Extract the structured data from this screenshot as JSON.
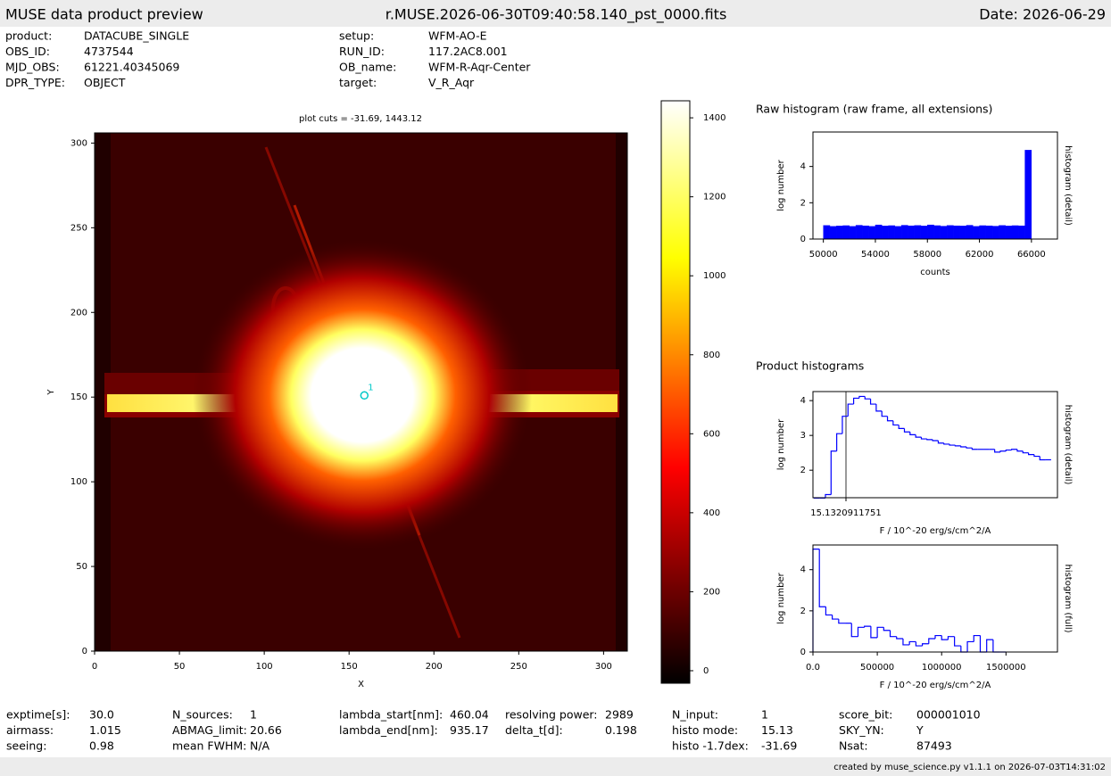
{
  "header": {
    "left": "MUSE data product preview",
    "center": "r.MUSE.2026-06-30T09:40:58.140_pst_0000.fits",
    "right": "Date: 2026-06-29"
  },
  "info_top": [
    [
      {
        "label": "product:",
        "value": "DATACUBE_SINGLE"
      },
      {
        "label": "OBS_ID:",
        "value": "4737544"
      },
      {
        "label": "MJD_OBS:",
        "value": "61221.40345069"
      },
      {
        "label": "DPR_TYPE:",
        "value": "OBJECT"
      }
    ],
    [
      {
        "label": "setup:",
        "value": "WFM-AO-E"
      },
      {
        "label": "RUN_ID:",
        "value": "117.2AC8.001"
      },
      {
        "label": "OB_name:",
        "value": "WFM-R-Aqr-Center"
      },
      {
        "label": "target:",
        "value": "V_R_Aqr"
      }
    ]
  ],
  "chart_data": [
    {
      "type": "image",
      "title": "plot cuts = -31.69, 1443.12",
      "xlabel": "X",
      "ylabel": "Y",
      "xlim": [
        0,
        314
      ],
      "ylim": [
        0,
        306
      ],
      "xticks": [
        0,
        50,
        100,
        150,
        200,
        250,
        300
      ],
      "yticks": [
        0,
        50,
        100,
        150,
        200,
        250,
        300
      ],
      "points": {
        "x": [
          159
        ],
        "y": [
          151
        ],
        "labels": [
          "1"
        ],
        "color": "#00c8c8"
      }
    },
    {
      "type": "colorbar",
      "ylim": [
        -31.69,
        1443.12
      ],
      "yticks": [
        0,
        200,
        400,
        600,
        800,
        1000,
        1200,
        1400
      ]
    },
    {
      "type": "histogram",
      "title": "Raw histogram (raw frame, all extensions)",
      "xlabel": "counts",
      "ylabel": "log number",
      "y2label": "histogram (detail)",
      "bins": [
        50000,
        50500,
        51000,
        51500,
        52000,
        52500,
        53000,
        53500,
        54000,
        54500,
        55000,
        55500,
        56000,
        56500,
        57000,
        57500,
        58000,
        58500,
        59000,
        59500,
        60000,
        60500,
        61000,
        61500,
        62000,
        62500,
        63000,
        63500,
        64000,
        64500,
        65000,
        65500,
        66000
      ],
      "values": [
        0.75,
        0.7,
        0.72,
        0.74,
        0.7,
        0.76,
        0.73,
        0.7,
        0.78,
        0.72,
        0.74,
        0.7,
        0.76,
        0.73,
        0.75,
        0.72,
        0.78,
        0.74,
        0.71,
        0.75,
        0.73,
        0.72,
        0.76,
        0.7,
        0.74,
        0.73,
        0.71,
        0.75,
        0.72,
        0.74,
        0.73,
        4.9
      ],
      "color": "#0000ff",
      "fill": true,
      "xlim": [
        49200,
        68000
      ],
      "ylim": [
        0,
        5.9
      ],
      "xticks": [
        50000,
        54000,
        58000,
        62000,
        66000
      ],
      "yticks": [
        0,
        2,
        4
      ]
    },
    {
      "type": "histogram",
      "title": "Product histograms",
      "xlabel": "F / 10^-20 erg/s/cm^2/A",
      "ylabel": "log number",
      "y2label": "histogram (detail)",
      "bins": [
        -30,
        -22,
        -14,
        -6,
        2,
        10,
        18,
        26,
        34,
        42,
        50,
        58,
        66,
        74,
        82,
        90,
        98,
        106,
        114,
        122,
        130,
        138,
        146,
        154,
        162,
        170,
        178,
        186,
        194,
        202,
        210,
        218,
        226,
        234,
        242,
        250,
        258,
        266,
        274,
        282,
        290,
        298,
        306
      ],
      "values": [
        1.2,
        1.2,
        1.3,
        2.55,
        3.05,
        3.55,
        3.9,
        4.07,
        4.12,
        4.05,
        3.9,
        3.7,
        3.55,
        3.42,
        3.3,
        3.2,
        3.1,
        3.02,
        2.95,
        2.9,
        2.88,
        2.85,
        2.78,
        2.75,
        2.72,
        2.7,
        2.67,
        2.64,
        2.6,
        2.6,
        2.6,
        2.6,
        2.52,
        2.55,
        2.58,
        2.6,
        2.55,
        2.5,
        2.45,
        2.4,
        2.3,
        2.3
      ],
      "color": "#0000ff",
      "fill": false,
      "xgrid": true,
      "xlim": [
        -31.69,
        315
      ],
      "ylim": [
        1.21,
        4.26
      ],
      "xticks": [
        15.1320911751
      ],
      "yticks": [
        2,
        3,
        4
      ]
    },
    {
      "type": "histogram",
      "xlabel": "F / 10^-20 erg/s/cm^2/A",
      "ylabel": "log number",
      "y2label": "histogram (full)",
      "bins": [
        0,
        50000,
        100000,
        150000,
        200000,
        250000,
        300000,
        350000,
        400000,
        450000,
        500000,
        550000,
        600000,
        650000,
        700000,
        750000,
        800000,
        850000,
        900000,
        950000,
        1000000,
        1050000,
        1100000,
        1150000,
        1200000,
        1250000,
        1300000,
        1350000,
        1400000,
        1450000,
        1500000
      ],
      "values": [
        5,
        2.2,
        1.8,
        1.6,
        1.4,
        1.4,
        0.75,
        1.2,
        1.25,
        0.7,
        1.2,
        1.05,
        0.75,
        0.65,
        0.35,
        0.5,
        0.3,
        0.4,
        0.65,
        0.8,
        0.6,
        0.75,
        0.3,
        0,
        0.5,
        0.8,
        0,
        0.6,
        0,
        0
      ],
      "color": "#0000ff",
      "fill": false,
      "xlim": [
        0,
        1900000
      ],
      "ylim": [
        0,
        5.2
      ],
      "xticks": [
        {
          "value": 0,
          "label": "0.0"
        },
        500000,
        1000000,
        1500000
      ],
      "yticks": [
        0,
        2,
        4
      ]
    }
  ],
  "info_bottom": [
    [
      {
        "label": "exptime[s]:",
        "value": "30.0"
      },
      {
        "label": "airmass:",
        "value": "1.015"
      },
      {
        "label": "seeing:",
        "value": "0.98"
      }
    ],
    [
      {
        "label": "N_sources:",
        "value": "1"
      },
      {
        "label": "ABMAG_limit:",
        "value": "20.66"
      },
      {
        "label": "mean FWHM:",
        "value": "N/A"
      }
    ],
    [
      {
        "label": "lambda_start[nm]:",
        "value": "460.04"
      },
      {
        "label": "lambda_end[nm]:",
        "value": "935.17"
      }
    ],
    [
      {
        "label": "resolving power:",
        "value": "2989"
      },
      {
        "label": "delta_t[d]:",
        "value": "0.198"
      }
    ],
    [
      {
        "label": "N_input:",
        "value": "1"
      },
      {
        "label": "histo mode:",
        "value": "15.13"
      },
      {
        "label": "histo -1.7dex:",
        "value": "-31.69"
      }
    ],
    [
      {
        "label": "score_bit:",
        "value": "000001010"
      },
      {
        "label": "SKY_YN:",
        "value": "Y"
      },
      {
        "label": "Nsat:",
        "value": "87493"
      }
    ]
  ],
  "footer": "created by muse_science.py v1.1.1 on 2026-07-03T14:31:02"
}
